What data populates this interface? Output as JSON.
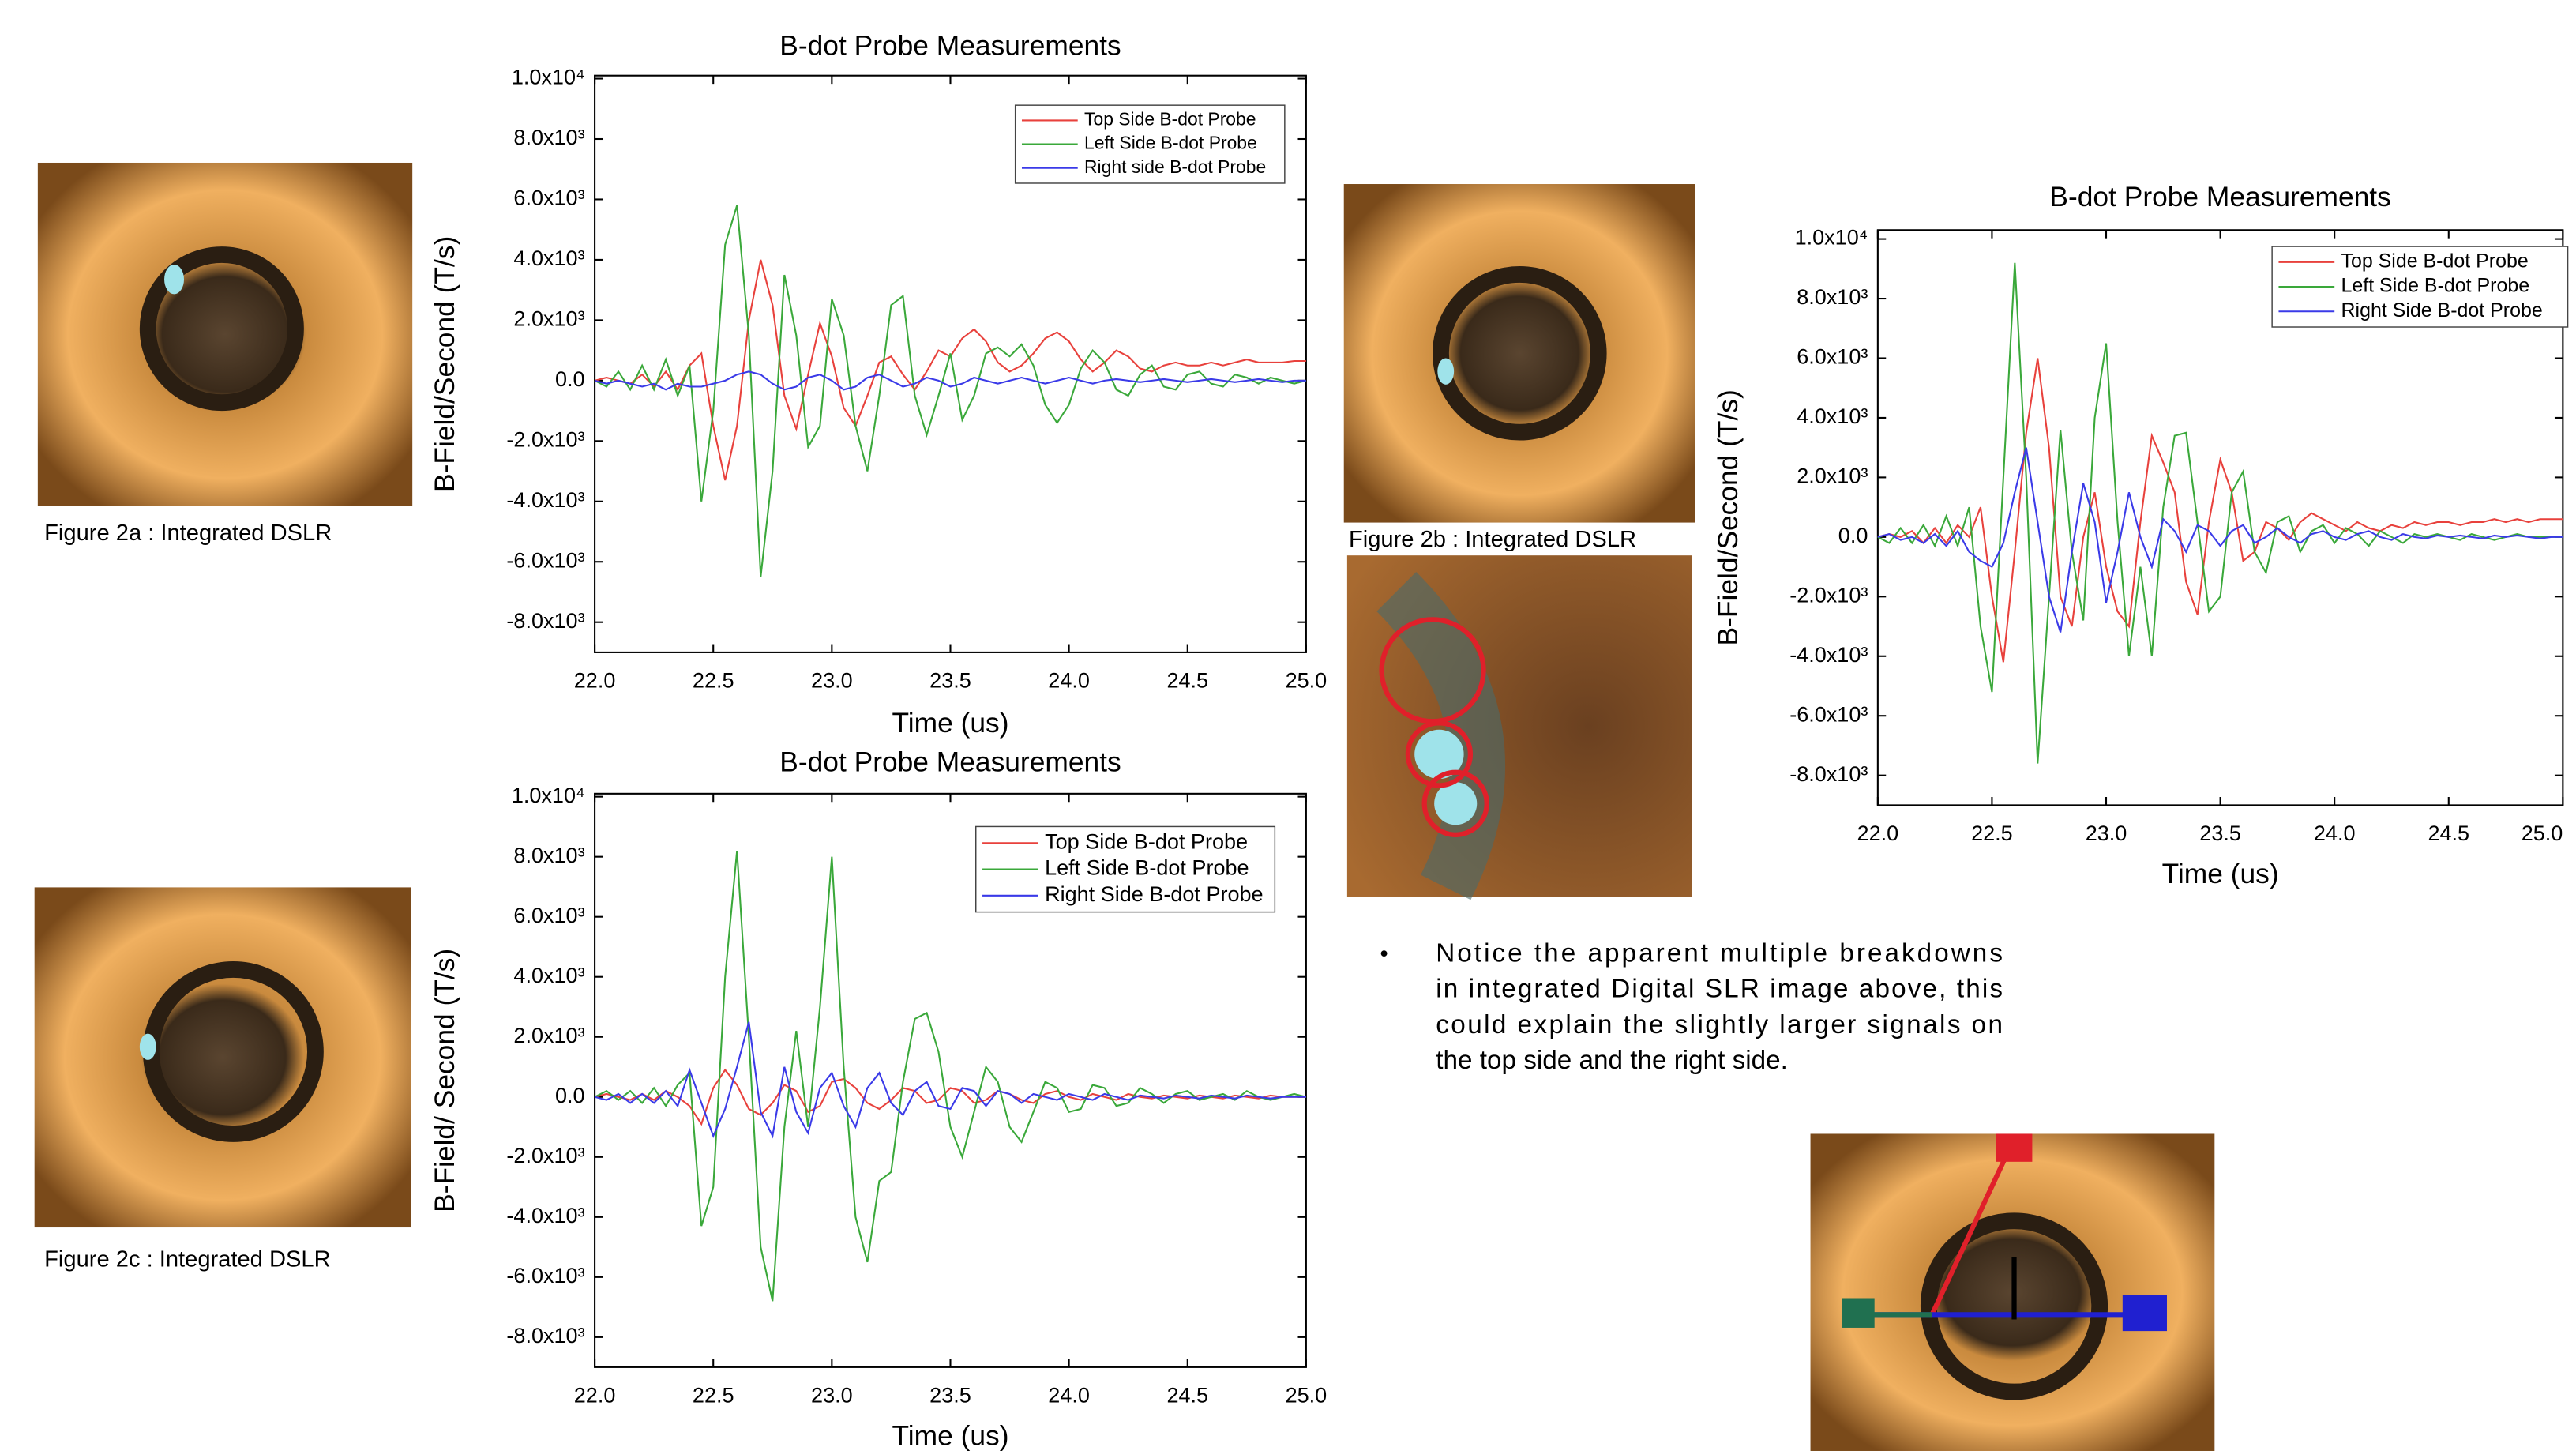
{
  "chart_data": [
    {
      "type": "line",
      "title": "B-dot Probe Measurements",
      "x_label": "Time (us)",
      "y_label": "B-Field/Second (T/s)",
      "x": [
        22,
        22.05,
        22.1,
        22.15,
        22.2,
        22.25,
        22.3,
        22.35,
        22.4,
        22.45,
        22.5,
        22.55,
        22.6,
        22.65,
        22.7,
        22.75,
        22.8,
        22.85,
        22.9,
        22.95,
        23,
        23.05,
        23.1,
        23.15,
        23.2,
        23.25,
        23.3,
        23.35,
        23.4,
        23.45,
        23.5,
        23.55,
        23.6,
        23.65,
        23.7,
        23.75,
        23.8,
        23.85,
        23.9,
        23.95,
        24,
        24.05,
        24.1,
        24.15,
        24.2,
        24.25,
        24.3,
        24.35,
        24.4,
        24.45,
        24.5,
        24.55,
        24.6,
        24.65,
        24.7,
        24.75,
        24.8,
        24.85,
        24.9,
        24.95,
        25
      ],
      "series": [
        {
          "name": "Top Side B-dot Probe",
          "color": "#e8413c",
          "values": [
            0,
            100,
            0,
            -100,
            200,
            -200,
            300,
            -300,
            500,
            900,
            -1500,
            -3300,
            -1500,
            2000,
            4000,
            2500,
            -500,
            -1600,
            200,
            1900,
            800,
            -900,
            -1500,
            -500,
            600,
            800,
            200,
            -300,
            300,
            1000,
            800,
            1400,
            1700,
            1300,
            600,
            300,
            500,
            900,
            1400,
            1600,
            1300,
            700,
            300,
            600,
            1000,
            800,
            400,
            300,
            500,
            600,
            500,
            500,
            600,
            500,
            600,
            700,
            600,
            600,
            600,
            650,
            650
          ]
        },
        {
          "name": "Left Side B-dot Probe",
          "color": "#3aa83a",
          "values": [
            0,
            -200,
            300,
            -300,
            500,
            -300,
            700,
            -500,
            500,
            -4000,
            -1000,
            4500,
            5800,
            1500,
            -6500,
            -3000,
            3500,
            1500,
            -2200,
            -1500,
            2700,
            1500,
            -1500,
            -3000,
            -500,
            2500,
            2800,
            -500,
            -1800,
            -500,
            900,
            -1300,
            -500,
            900,
            1100,
            800,
            1200,
            500,
            -800,
            -1400,
            -800,
            400,
            1000,
            600,
            -300,
            -500,
            200,
            500,
            -200,
            -300,
            200,
            300,
            -100,
            -200,
            200,
            100,
            -100,
            100,
            0,
            -100,
            0
          ]
        },
        {
          "name": "Right side B-dot Probe",
          "color": "#3a3ae8",
          "values": [
            0,
            -100,
            0,
            -100,
            -200,
            -100,
            -300,
            -100,
            -200,
            -200,
            -100,
            0,
            200,
            300,
            200,
            -100,
            -300,
            -200,
            100,
            200,
            0,
            -300,
            -200,
            100,
            200,
            0,
            -200,
            -100,
            100,
            0,
            -200,
            -100,
            100,
            0,
            -100,
            0,
            100,
            0,
            -100,
            0,
            100,
            0,
            -100,
            0,
            50,
            0,
            -50,
            0,
            50,
            0,
            -50,
            0,
            50,
            0,
            -50,
            0,
            50,
            0,
            -50,
            0,
            0
          ]
        }
      ],
      "xlim": [
        22,
        25
      ],
      "xticks": [
        {
          "value": 22,
          "label": "22.0"
        },
        22.5,
        {
          "value": 23,
          "label": "23.0"
        },
        23.5,
        {
          "value": 24,
          "label": "24.0"
        },
        24.5,
        {
          "value": 25,
          "label": "25.0"
        }
      ],
      "ylim": [
        -9000,
        10100
      ],
      "yticks": [
        {
          "value": -8000,
          "label": "-8.0x10³"
        },
        {
          "value": -6000,
          "label": "-6.0x10³"
        },
        {
          "value": -4000,
          "label": "-4.0x10³"
        },
        {
          "value": -2000,
          "label": "-2.0x10³"
        },
        {
          "value": 0,
          "label": "0.0"
        },
        {
          "value": 2000,
          "label": "2.0x10³"
        },
        {
          "value": 4000,
          "label": "4.0x10³"
        },
        {
          "value": 6000,
          "label": "6.0x10³"
        },
        {
          "value": 8000,
          "label": "8.0x10³"
        },
        {
          "value": 10000,
          "label": "1.0x10⁴"
        }
      ],
      "legend": "upper right"
    },
    {
      "type": "line",
      "title": "B-dot Probe Measurements",
      "x_label": "Time (us)",
      "y_label": "B-Field/ Second (T/s)",
      "x": [
        22,
        22.05,
        22.1,
        22.15,
        22.2,
        22.25,
        22.3,
        22.35,
        22.4,
        22.45,
        22.5,
        22.55,
        22.6,
        22.65,
        22.7,
        22.75,
        22.8,
        22.85,
        22.9,
        22.95,
        23,
        23.05,
        23.1,
        23.15,
        23.2,
        23.25,
        23.3,
        23.35,
        23.4,
        23.45,
        23.5,
        23.55,
        23.6,
        23.65,
        23.7,
        23.75,
        23.8,
        23.85,
        23.9,
        23.95,
        24,
        24.05,
        24.1,
        24.15,
        24.2,
        24.25,
        24.3,
        24.35,
        24.4,
        24.45,
        24.5,
        24.55,
        24.6,
        24.65,
        24.7,
        24.75,
        24.8,
        24.85,
        24.9,
        24.95,
        25
      ],
      "series": [
        {
          "name": "Top Side B-dot Probe",
          "color": "#e8413c",
          "values": [
            0,
            100,
            0,
            -100,
            100,
            -100,
            200,
            0,
            -300,
            -900,
            300,
            900,
            400,
            -400,
            -600,
            -200,
            400,
            200,
            -500,
            -300,
            500,
            600,
            300,
            -200,
            -400,
            -100,
            300,
            200,
            -200,
            -100,
            300,
            200,
            -200,
            -100,
            200,
            100,
            -100,
            -200,
            100,
            200,
            0,
            -100,
            100,
            0,
            -100,
            100,
            0,
            -50,
            50,
            0,
            -50,
            50,
            0,
            -50,
            50,
            0,
            -50,
            50,
            0,
            0,
            0
          ]
        },
        {
          "name": "Left Side B-dot Probe",
          "color": "#3aa83a",
          "values": [
            0,
            200,
            -100,
            200,
            -200,
            300,
            -300,
            400,
            800,
            -4300,
            -3000,
            4000,
            8200,
            2000,
            -5000,
            -6800,
            -1000,
            2200,
            -1000,
            3000,
            8000,
            1000,
            -4000,
            -5500,
            -2800,
            -2500,
            500,
            2600,
            2800,
            1500,
            -1000,
            -2000,
            -500,
            1000,
            500,
            -1000,
            -1500,
            -500,
            500,
            300,
            -500,
            -400,
            400,
            300,
            -300,
            -200,
            300,
            100,
            -200,
            100,
            200,
            -100,
            0,
            100,
            -100,
            200,
            0,
            -100,
            0,
            100,
            0
          ]
        },
        {
          "name": "Right Side B-dot Probe",
          "color": "#3a3ae8",
          "values": [
            0,
            -100,
            100,
            -200,
            100,
            -200,
            200,
            -300,
            900,
            -200,
            -1300,
            -400,
            1000,
            2500,
            -500,
            -1300,
            1000,
            -500,
            -1200,
            300,
            800,
            -300,
            -1000,
            300,
            800,
            -200,
            -600,
            200,
            500,
            -300,
            -400,
            300,
            200,
            -300,
            200,
            100,
            -200,
            100,
            0,
            -100,
            100,
            0,
            -100,
            100,
            0,
            -100,
            50,
            0,
            -50,
            50,
            0,
            -50,
            50,
            0,
            -50,
            50,
            0,
            -50,
            0,
            0,
            0
          ]
        }
      ],
      "xlim": [
        22,
        25
      ],
      "xticks": [
        {
          "value": 22,
          "label": "22.0"
        },
        22.5,
        {
          "value": 23,
          "label": "23.0"
        },
        23.5,
        {
          "value": 24,
          "label": "24.0"
        },
        24.5,
        {
          "value": 25,
          "label": "25.0"
        }
      ],
      "ylim": [
        -9000,
        10100
      ],
      "yticks": [
        {
          "value": -8000,
          "label": "-8.0x10³"
        },
        {
          "value": -6000,
          "label": "-6.0x10³"
        },
        {
          "value": -4000,
          "label": "-4.0x10³"
        },
        {
          "value": -2000,
          "label": "-2.0x10³"
        },
        {
          "value": 0,
          "label": "0.0"
        },
        {
          "value": 2000,
          "label": "2.0x10³"
        },
        {
          "value": 4000,
          "label": "4.0x10³"
        },
        {
          "value": 6000,
          "label": "6.0x10³"
        },
        {
          "value": 8000,
          "label": "8.0x10³"
        },
        {
          "value": 10000,
          "label": "1.0x10⁴"
        }
      ],
      "legend": "upper right"
    },
    {
      "type": "line",
      "title": "B-dot Probe Measurements",
      "x_label": "Time (us)",
      "y_label": "B-Field/Second (T/s)",
      "x": [
        22,
        22.05,
        22.1,
        22.15,
        22.2,
        22.25,
        22.3,
        22.35,
        22.4,
        22.45,
        22.5,
        22.55,
        22.6,
        22.65,
        22.7,
        22.75,
        22.8,
        22.85,
        22.9,
        22.95,
        23,
        23.05,
        23.1,
        23.15,
        23.2,
        23.25,
        23.3,
        23.35,
        23.4,
        23.45,
        23.5,
        23.55,
        23.6,
        23.65,
        23.7,
        23.75,
        23.8,
        23.85,
        23.9,
        23.95,
        24,
        24.05,
        24.1,
        24.15,
        24.2,
        24.25,
        24.3,
        24.35,
        24.4,
        24.45,
        24.5,
        24.55,
        24.6,
        24.65,
        24.7,
        24.75,
        24.8,
        24.85,
        24.9,
        24.95,
        25
      ],
      "series": [
        {
          "name": "Top Side B-dot Probe",
          "color": "#e8413c",
          "values": [
            0,
            100,
            0,
            200,
            -200,
            300,
            -200,
            400,
            0,
            1000,
            -2000,
            -4200,
            -500,
            3500,
            6000,
            3000,
            -2000,
            -3000,
            0,
            1500,
            -1000,
            -2500,
            -3000,
            500,
            3400,
            2500,
            1500,
            -1500,
            -2600,
            500,
            2600,
            1500,
            -800,
            -500,
            500,
            300,
            -100,
            500,
            800,
            600,
            400,
            200,
            500,
            300,
            200,
            400,
            300,
            500,
            400,
            500,
            500,
            400,
            500,
            500,
            600,
            500,
            600,
            500,
            600,
            600,
            600
          ]
        },
        {
          "name": "Left Side B-dot Probe",
          "color": "#3aa83a",
          "values": [
            0,
            -200,
            300,
            -200,
            400,
            -300,
            700,
            -300,
            1000,
            -3000,
            -5200,
            2000,
            9200,
            2000,
            -7600,
            -2000,
            3600,
            -500,
            -2800,
            4000,
            6500,
            500,
            -4000,
            -1000,
            -4000,
            1000,
            3400,
            3500,
            500,
            -2500,
            -2000,
            1500,
            2200,
            -500,
            -1200,
            500,
            700,
            -500,
            200,
            400,
            -200,
            300,
            100,
            -300,
            200,
            0,
            -200,
            100,
            0,
            100,
            0,
            -100,
            100,
            0,
            -100,
            0,
            100,
            0,
            0,
            0,
            0
          ]
        },
        {
          "name": "Right Side B-dot Probe",
          "color": "#3a3ae8",
          "values": [
            0,
            100,
            -100,
            0,
            -200,
            100,
            -300,
            200,
            -500,
            -800,
            -1000,
            -200,
            1500,
            3000,
            500,
            -2000,
            -3200,
            -500,
            1800,
            500,
            -2200,
            -500,
            1500,
            0,
            -1000,
            600,
            200,
            -500,
            400,
            200,
            -300,
            200,
            400,
            -200,
            0,
            300,
            0,
            -200,
            100,
            200,
            0,
            -100,
            100,
            200,
            0,
            -100,
            100,
            0,
            -50,
            50,
            0,
            50,
            0,
            -50,
            50,
            0,
            50,
            0,
            -50,
            0,
            0
          ]
        }
      ],
      "xlim": [
        22,
        25
      ],
      "xticks": [
        {
          "value": 22,
          "label": "22.0"
        },
        22.5,
        {
          "value": 23,
          "label": "23.0"
        },
        23.5,
        {
          "value": 24,
          "label": "24.0"
        },
        24.5,
        {
          "value": 25,
          "label": "25.0"
        }
      ],
      "ylim": [
        -9000,
        10300
      ],
      "yticks": [
        {
          "value": -8000,
          "label": "-8.0x10³"
        },
        {
          "value": -6000,
          "label": "-6.0x10³"
        },
        {
          "value": -4000,
          "label": "-4.0x10³"
        },
        {
          "value": -2000,
          "label": "-2.0x10³"
        },
        {
          "value": 0,
          "label": "0.0"
        },
        {
          "value": 2000,
          "label": "2.0x10³"
        },
        {
          "value": 4000,
          "label": "4.0x10³"
        },
        {
          "value": 6000,
          "label": "6.0x10³"
        },
        {
          "value": 8000,
          "label": "8.0x10³"
        },
        {
          "value": 10000,
          "label": "1.0x10⁴"
        }
      ],
      "legend": "upper right"
    }
  ],
  "captions": [
    "Figure 2a : Integrated DSLR",
    "Figure 2b : Integrated DSLR",
    "Figure 2c : Integrated DSLR"
  ],
  "bullet": {
    "marker": "•",
    "lines": [
      "Notice the apparent multiple breakdowns",
      "in integrated Digital SLR image above, this",
      "could explain the slightly larger signals on",
      "the top side and the right side."
    ]
  }
}
